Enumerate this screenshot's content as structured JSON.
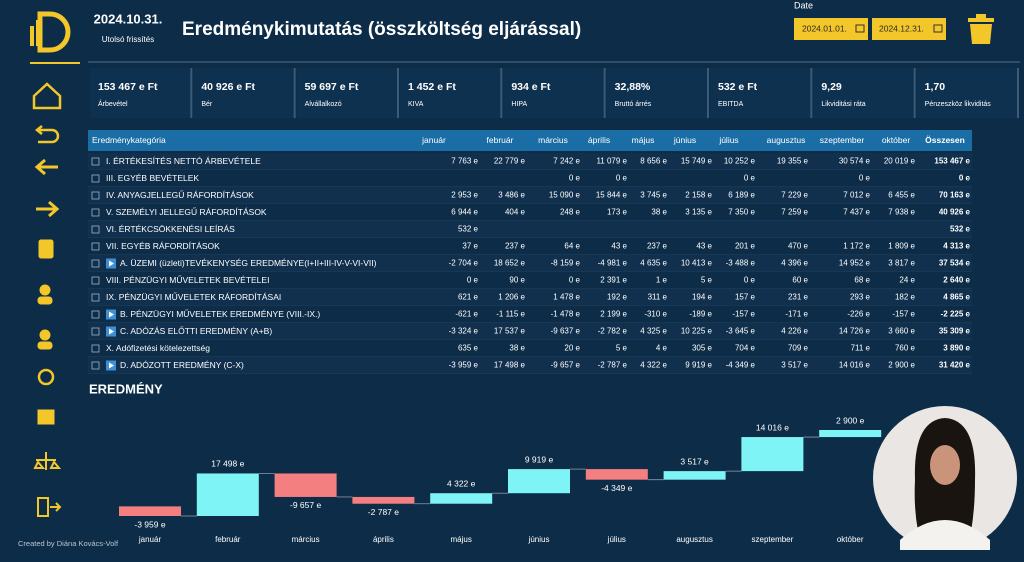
{
  "header": {
    "date": "2024.10.31.",
    "date_caption": "Utolsó frissítés",
    "title": "Eredménykimutatás (összköltség eljárással)",
    "date_filter_label": "Date",
    "date_from": "2024.01.01.",
    "date_to": "2024.12.31."
  },
  "kpis": [
    {
      "value": "153 467 e Ft",
      "label": "Árbevétel"
    },
    {
      "value": "40 926 e Ft",
      "label": "Bér"
    },
    {
      "value": "59 697 e Ft",
      "label": "Alvállalkozó"
    },
    {
      "value": "1 452 e Ft",
      "label": "KIVA"
    },
    {
      "value": "934 e Ft",
      "label": "HIPA"
    },
    {
      "value": "32,88%",
      "label": "Bruttó árrés"
    },
    {
      "value": "532 e Ft",
      "label": "EBITDA"
    },
    {
      "value": "9,29",
      "label": "Likviditási ráta"
    },
    {
      "value": "1,70",
      "label": "Pénzeszköz likviditás"
    }
  ],
  "table": {
    "columns": [
      "Eredménykategória",
      "január",
      "február",
      "március",
      "április",
      "május",
      "június",
      "július",
      "augusztus",
      "szeptember",
      "október",
      "Összesen"
    ],
    "rows": [
      [
        "I. ÉRTÉKESÍTÉS NETTÓ ÁRBEVÉTELE",
        "7 763 e",
        "22 779 e",
        "7 242 e",
        "11 079 e",
        "8 656 e",
        "15 749 e",
        "10 252 e",
        "19 355 e",
        "30 574 e",
        "20 019 e",
        "153 467 e"
      ],
      [
        "III. EGYÉB BEVÉTELEK",
        null,
        null,
        "0 e",
        "0 e",
        null,
        null,
        "0 e",
        null,
        "0 e",
        null,
        "0 e"
      ],
      [
        "IV. ANYAGJELLEGŰ RÁFORDÍTÁSOK",
        "2 953 e",
        "3 486 e",
        "15 090 e",
        "15 844 e",
        "3 745 e",
        "2 158 e",
        "6 189 e",
        "7 229 e",
        "7 012 e",
        "6 455 e",
        "70 163 e"
      ],
      [
        "V. SZEMÉLYI JELLEGŰ RÁFORDÍTÁSOK",
        "6 944 e",
        "404 e",
        "248 e",
        "173 e",
        "38 e",
        "3 135 e",
        "7 350 e",
        "7 259 e",
        "7 437 e",
        "7 938 e",
        "40 926 e"
      ],
      [
        "VI. ÉRTÉKCSÖKKENÉSI LEÍRÁS",
        "532 e",
        null,
        null,
        null,
        null,
        null,
        null,
        null,
        null,
        null,
        "532 e"
      ],
      [
        "VII. EGYÉB RÁFORDÍTÁSOK",
        "37 e",
        "237 e",
        "64 e",
        "43 e",
        "237 e",
        "43 e",
        "201 e",
        "470 e",
        "1 172 e",
        "1 809 e",
        "4 313 e"
      ],
      [
        "A. ÜZEMI (üzleti)TEVÉKENYSÉG EREDMÉNYE(I+II+III-IV-V-VI-VII)",
        "-2 704 e",
        "18 652 e",
        "-8 159 e",
        "-4 981 e",
        "4 635 e",
        "10 413 e",
        "-3 488 e",
        "4 396 e",
        "14 952 e",
        "3 817 e",
        "37 534 e"
      ],
      [
        "VIII. PÉNZÜGYI MŰVELETEK BEVÉTELEI",
        "0 e",
        "90 e",
        "0 e",
        "2 391 e",
        "1 e",
        "5 e",
        "0 e",
        "60 e",
        "68 e",
        "24 e",
        "2 640 e"
      ],
      [
        "IX. PÉNZÜGYI MŰVELETEK RÁFORDÍTÁSAI",
        "621 e",
        "1 206 e",
        "1 478 e",
        "192 e",
        "311 e",
        "194 e",
        "157 e",
        "231 e",
        "293 e",
        "182 e",
        "4 865 e"
      ],
      [
        "B. PÉNZÜGYI MŰVELETEK EREDMÉNYE (VIII.-IX.)",
        "-621 e",
        "-1 115 e",
        "-1 478 e",
        "2 199 e",
        "-310 e",
        "-189 e",
        "-157 e",
        "-171 e",
        "-226 e",
        "-157 e",
        "-2 225 e"
      ],
      [
        "C. ADÓZÁS ELŐTTI EREDMÉNY (A+B)",
        "-3 324 e",
        "17 537 e",
        "-9 637 e",
        "-2 782 e",
        "4 325 e",
        "10 225 e",
        "-3 645 e",
        "4 226 e",
        "14 726 e",
        "3 660 e",
        "35 309 e"
      ],
      [
        "X. Adófizetési kötelezettség",
        "635 e",
        "38 e",
        "20 e",
        "5 e",
        "4 e",
        "305 e",
        "704 e",
        "709 e",
        "711 e",
        "760 e",
        "3 890 e"
      ],
      [
        "D. ADÓZOTT EREDMÉNY (C-X)",
        "-3 959 e",
        "17 498 e",
        "-9 657 e",
        "-2 787 e",
        "4 322 e",
        "9 919 e",
        "-4 349 e",
        "3 517 e",
        "14 016 e",
        "2 900 e",
        "31 420 e"
      ]
    ],
    "play_rows": [
      6,
      9,
      10,
      12
    ]
  },
  "chart_data": {
    "type": "waterfall",
    "title": "EREDMÉNY",
    "categories": [
      "január",
      "február",
      "március",
      "április",
      "május",
      "június",
      "július",
      "augusztus",
      "szeptember",
      "október"
    ],
    "values": [
      -3959,
      17498,
      -9657,
      -2787,
      4322,
      9919,
      -4349,
      3517,
      14016,
      2900
    ],
    "value_labels": [
      "-3 959 e",
      "17 498 e",
      "-9 657 e",
      "-2 787 e",
      "4 322 e",
      "9 919 e",
      "-4 349 e",
      "3 517 e",
      "14 016 e",
      "2 900 e"
    ],
    "colors": {
      "increase": "#7ff4f7",
      "decrease": "#f47f80"
    }
  },
  "footer": {
    "credit": "Created by Diána Kovács-Volf"
  }
}
